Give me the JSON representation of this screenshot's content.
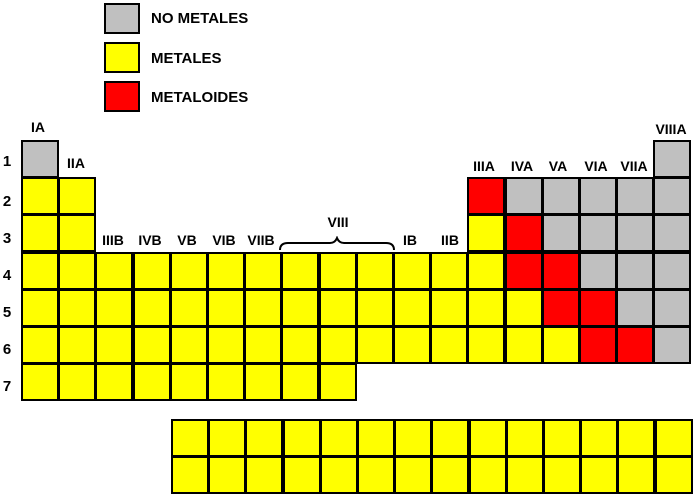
{
  "legend": [
    {
      "label": "NO METALES",
      "kind": "nonmetal"
    },
    {
      "label": "METALES",
      "kind": "metal"
    },
    {
      "label": "METALOIDES",
      "kind": "metalloid"
    }
  ],
  "colors": {
    "nonmetal": "#c0c0c0",
    "metal": "#ffff00",
    "metalloid": "#ff0000",
    "border": "#000000"
  },
  "periods": [
    "1",
    "2",
    "3",
    "4",
    "5",
    "6",
    "7"
  ],
  "groups": {
    "ia": "IA",
    "iia": "IIA",
    "iiib": "IIIB",
    "ivb": "IVB",
    "vb": "VB",
    "vib": "VIB",
    "viib": "VIIB",
    "viii": "VIII",
    "ib": "IB",
    "iib": "IIB",
    "iiia": "IIIA",
    "iva": "IVA",
    "va": "VA",
    "via": "VIA",
    "viia": "VIIA",
    "viiia": "VIIIA"
  },
  "grid": {
    "period1": {
      "1": "nonmetal",
      "18": "nonmetal"
    },
    "period2": {
      "1": "metal",
      "2": "metal",
      "13": "metalloid",
      "14": "nonmetal",
      "15": "nonmetal",
      "16": "nonmetal",
      "17": "nonmetal",
      "18": "nonmetal"
    },
    "period3": {
      "1": "metal",
      "2": "metal",
      "13": "metal",
      "14": "metalloid",
      "15": "nonmetal",
      "16": "nonmetal",
      "17": "nonmetal",
      "18": "nonmetal"
    },
    "period4": {
      "1": "metal",
      "2": "metal",
      "3": "metal",
      "4": "metal",
      "5": "metal",
      "6": "metal",
      "7": "metal",
      "8": "metal",
      "9": "metal",
      "10": "metal",
      "11": "metal",
      "12": "metal",
      "13": "metal",
      "14": "metalloid",
      "15": "metalloid",
      "16": "nonmetal",
      "17": "nonmetal",
      "18": "nonmetal"
    },
    "period5": {
      "1": "metal",
      "2": "metal",
      "3": "metal",
      "4": "metal",
      "5": "metal",
      "6": "metal",
      "7": "metal",
      "8": "metal",
      "9": "metal",
      "10": "metal",
      "11": "metal",
      "12": "metal",
      "13": "metal",
      "14": "metal",
      "15": "metalloid",
      "16": "metalloid",
      "17": "nonmetal",
      "18": "nonmetal"
    },
    "period6": {
      "1": "metal",
      "2": "metal",
      "3": "metal",
      "4": "metal",
      "5": "metal",
      "6": "metal",
      "7": "metal",
      "8": "metal",
      "9": "metal",
      "10": "metal",
      "11": "metal",
      "12": "metal",
      "13": "metal",
      "14": "metal",
      "15": "metal",
      "16": "metalloid",
      "17": "metalloid",
      "18": "nonmetal"
    },
    "period7": {
      "1": "metal",
      "2": "metal",
      "3": "metal",
      "4": "metal",
      "5": "metal",
      "6": "metal",
      "7": "metal",
      "8": "metal",
      "9": "metal"
    }
  },
  "inner_transition": {
    "rows": 2,
    "columns": 14,
    "kind": "metal"
  }
}
